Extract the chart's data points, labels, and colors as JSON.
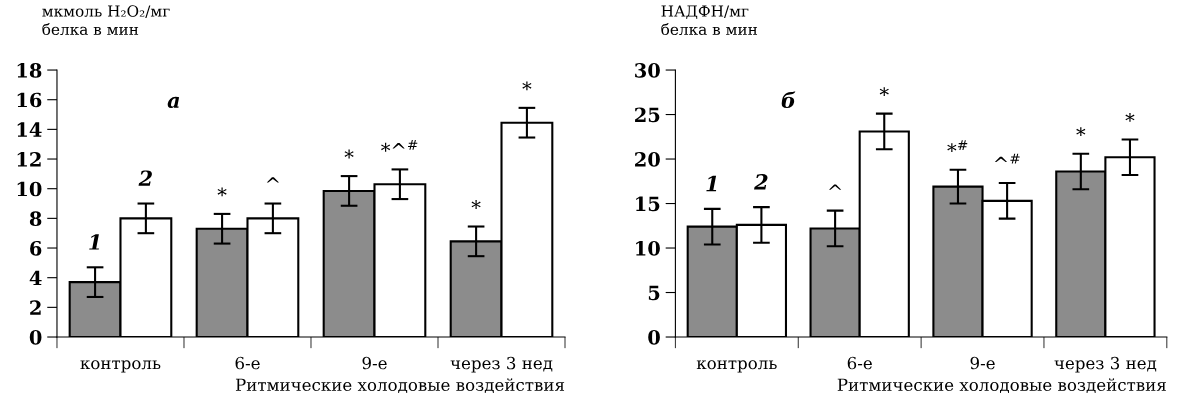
{
  "chart_data": [
    {
      "type": "bar",
      "ylabel": "мкмоль H₂O₂/мг\nбелка в мин",
      "xlabel": "Ритмические холодовые воздействия",
      "categories": [
        "контроль",
        "6-е",
        "9-е",
        "через 3 нед"
      ],
      "ylim": [
        0,
        18
      ],
      "yticks": [
        0,
        2,
        4,
        6,
        8,
        10,
        12,
        14,
        16,
        18
      ],
      "grid": false,
      "legend": false,
      "annotations": [
        "а"
      ],
      "series": [
        {
          "name": "1",
          "color": "#8c8c8c",
          "values": [
            3.7,
            7.3,
            9.85,
            6.45
          ],
          "errors": [
            1,
            1,
            1,
            1
          ],
          "value_labels": [
            null,
            "*",
            "*",
            "*"
          ]
        },
        {
          "name": "2",
          "color": "#ffffff",
          "values": [
            8.0,
            8.0,
            10.3,
            14.45
          ],
          "errors": [
            1,
            1,
            1,
            1
          ],
          "value_labels": [
            null,
            "^",
            "*^$^{#}$",
            "*"
          ]
        }
      ]
    },
    {
      "type": "bar",
      "ylabel": "НАДФН/мг\nбелка в мин",
      "xlabel": "Ритмические холодовые воздействия",
      "categories": [
        "контроль",
        "6-е",
        "9-е",
        "через 3 нед"
      ],
      "ylim": [
        0,
        30
      ],
      "yticks": [
        0,
        5,
        10,
        15,
        20,
        25,
        30
      ],
      "grid": false,
      "legend": false,
      "annotations": [
        "б"
      ],
      "series": [
        {
          "name": "1",
          "color": "#8c8c8c",
          "values": [
            12.4,
            12.2,
            16.9,
            18.6
          ],
          "errors": [
            2,
            2,
            1.9,
            2
          ],
          "value_labels": [
            null,
            "^",
            "*$^{#}$",
            "*"
          ]
        },
        {
          "name": "2",
          "color": "#ffffff",
          "values": [
            12.6,
            23.1,
            15.3,
            20.2
          ],
          "errors": [
            2,
            2,
            2,
            2
          ],
          "value_labels": [
            null,
            "*",
            "^$^{#}$",
            "*"
          ]
        }
      ]
    }
  ]
}
